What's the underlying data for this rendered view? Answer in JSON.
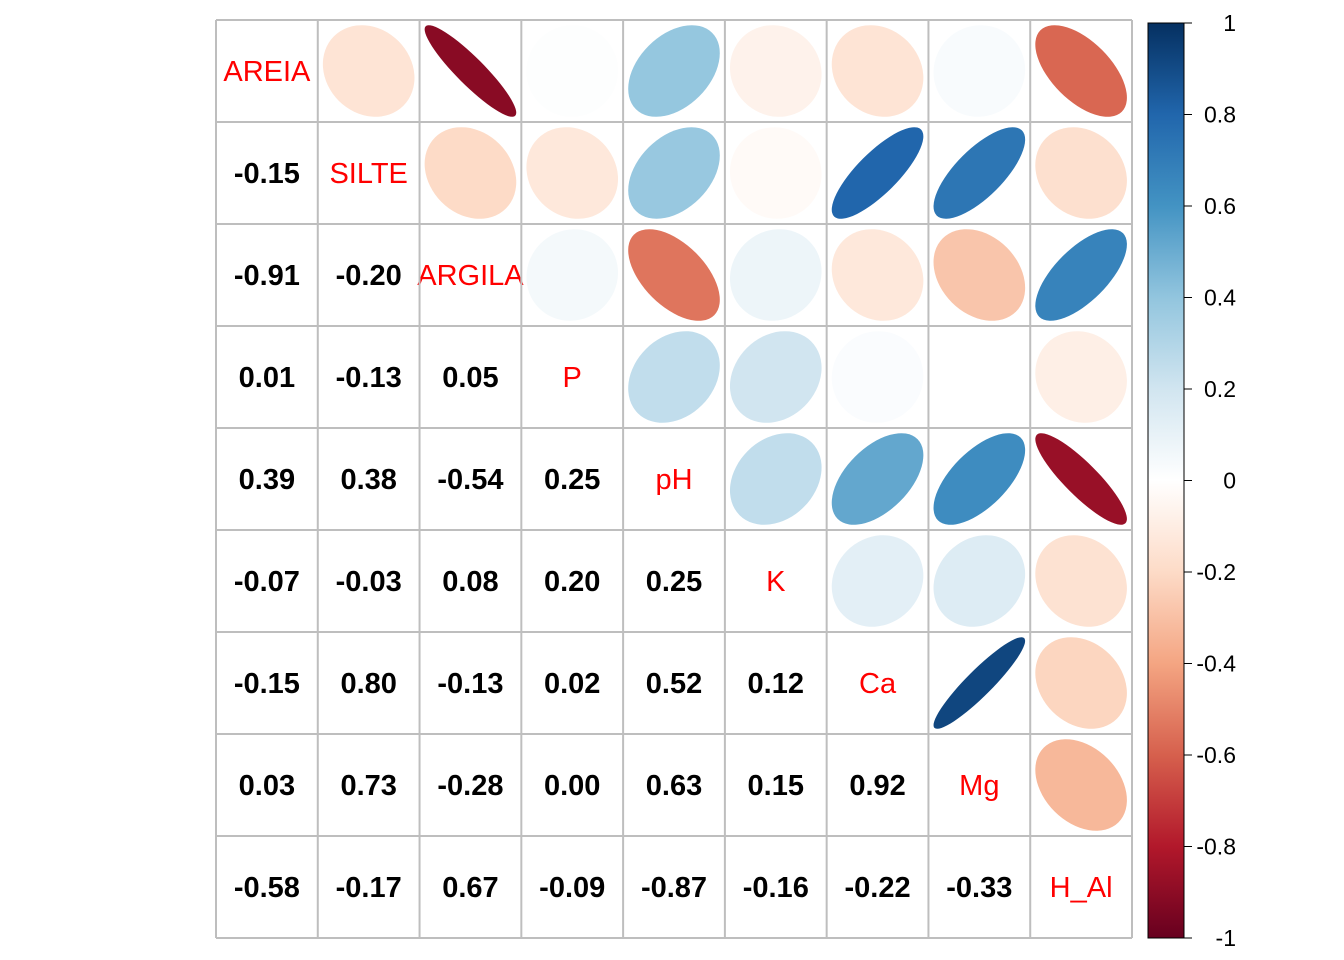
{
  "chart_data": {
    "type": "heatmap",
    "variables": [
      "AREIA",
      "SILTE",
      "ARGILA",
      "P",
      "pH",
      "K",
      "Ca",
      "Mg",
      "H_Al"
    ],
    "matrix": [
      [
        1.0,
        -0.15,
        -0.91,
        0.01,
        0.39,
        -0.07,
        -0.15,
        0.03,
        -0.58
      ],
      [
        -0.15,
        1.0,
        -0.2,
        -0.13,
        0.38,
        -0.03,
        0.8,
        0.73,
        -0.17
      ],
      [
        -0.91,
        -0.2,
        1.0,
        0.05,
        -0.54,
        0.08,
        -0.13,
        -0.28,
        0.67
      ],
      [
        0.01,
        -0.13,
        0.05,
        1.0,
        0.25,
        0.2,
        0.02,
        0.0,
        -0.09
      ],
      [
        0.39,
        0.38,
        -0.54,
        0.25,
        1.0,
        0.25,
        0.52,
        0.63,
        -0.87
      ],
      [
        -0.07,
        -0.03,
        0.08,
        0.2,
        0.25,
        1.0,
        0.12,
        0.15,
        -0.16
      ],
      [
        -0.15,
        0.8,
        -0.13,
        0.02,
        0.52,
        0.12,
        1.0,
        0.92,
        -0.22
      ],
      [
        0.03,
        0.73,
        -0.28,
        0.0,
        0.63,
        0.15,
        0.92,
        1.0,
        -0.33
      ],
      [
        -0.58,
        -0.17,
        0.67,
        -0.09,
        -0.87,
        -0.16,
        -0.22,
        -0.33,
        1.0
      ]
    ],
    "lower_labels": [
      [
        "-0.15"
      ],
      [
        "-0.91",
        "-0.20"
      ],
      [
        "0.01",
        "-0.13",
        "0.05"
      ],
      [
        "0.39",
        "0.38",
        "-0.54",
        "0.25"
      ],
      [
        "-0.07",
        "-0.03",
        "0.08",
        "0.20",
        "0.25"
      ],
      [
        "-0.15",
        "0.80",
        "-0.13",
        "0.02",
        "0.52",
        "0.12"
      ],
      [
        "0.03",
        "0.73",
        "-0.28",
        "0.00",
        "0.63",
        "0.15",
        "0.92"
      ],
      [
        "-0.58",
        "-0.17",
        "0.67",
        "-0.09",
        "-0.87",
        "-0.16",
        "-0.22",
        "-0.33"
      ]
    ],
    "upper_method": "ellipse",
    "lower_method": "number",
    "colorbar": {
      "range": [
        -1,
        1
      ],
      "ticks": [
        "1",
        "0.8",
        "0.6",
        "0.4",
        "0.2",
        "0",
        "-0.2",
        "-0.4",
        "-0.6",
        "-0.8",
        "-1"
      ],
      "colors": [
        "#67001f",
        "#b2182b",
        "#d6604d",
        "#f4a582",
        "#fddbc7",
        "#ffffff",
        "#d1e5f0",
        "#92c5de",
        "#4393c3",
        "#2166ac",
        "#053061"
      ]
    },
    "label_color": "#ff0000",
    "grid_color": "#bebebe"
  }
}
